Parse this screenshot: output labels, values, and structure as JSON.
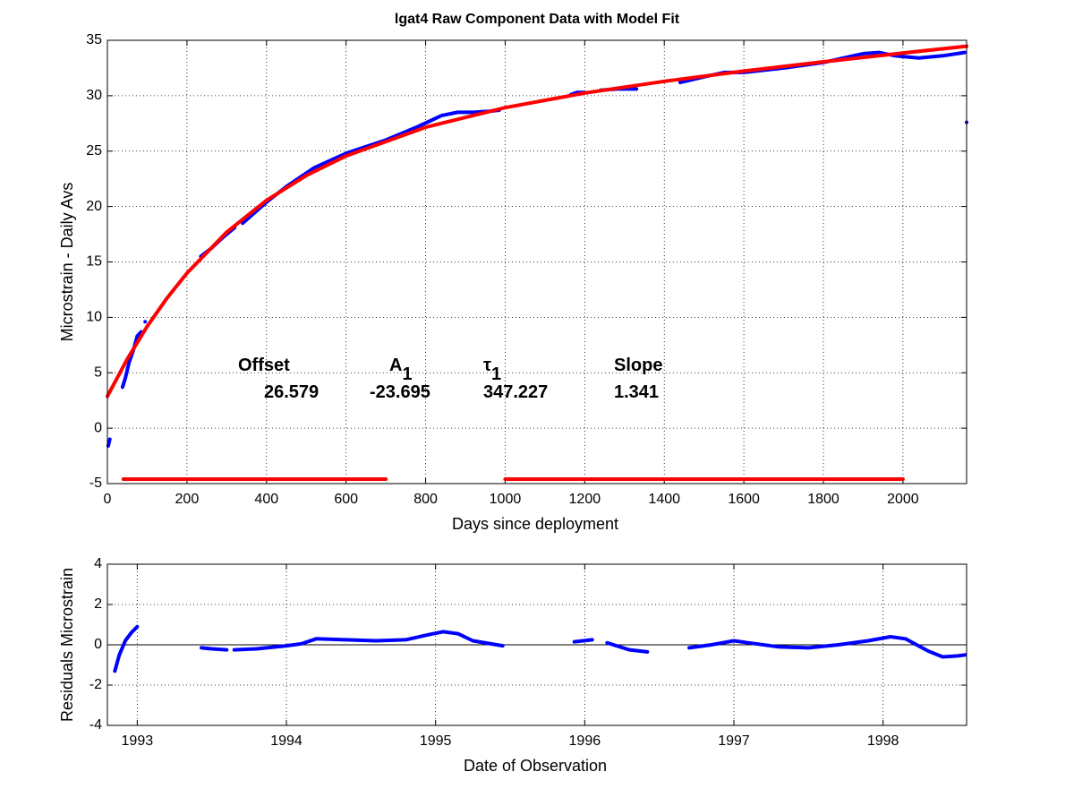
{
  "chart_data": [
    {
      "type": "line",
      "title": "lgat4  Raw Component Data with Model Fit",
      "xlabel": "Days since deployment",
      "ylabel": "Microstrain - Daily Avs",
      "xlim": [
        0,
        2160
      ],
      "ylim": [
        -5,
        35
      ],
      "xticks": [
        0,
        200,
        400,
        600,
        800,
        1000,
        1200,
        1400,
        1600,
        1800,
        2000
      ],
      "yticks": [
        -5,
        0,
        5,
        10,
        15,
        20,
        25,
        30,
        35
      ],
      "grid": true,
      "series": [
        {
          "color": "#0000ff",
          "x": [
            2,
            6,
            null,
            38,
            45,
            55,
            65,
            75,
            85,
            null,
            95,
            null,
            235,
            260,
            290,
            320,
            null,
            340,
            400,
            450,
            520,
            600,
            700,
            780,
            840,
            880,
            920,
            960,
            985,
            null,
            1165,
            1180,
            1200,
            null,
            1240,
            1280,
            1330,
            null,
            1440,
            1500,
            1550,
            1600,
            1700,
            1800,
            1850,
            1900,
            1940,
            1980,
            2040,
            2100,
            2155,
            null,
            2160
          ],
          "values": [
            -1.6,
            -1.0,
            null,
            3.7,
            4.5,
            6.0,
            7.0,
            8.3,
            8.7,
            null,
            9.6,
            null,
            15.5,
            16.2,
            17.2,
            18.1,
            null,
            18.5,
            20.4,
            21.8,
            23.5,
            24.8,
            26.0,
            27.2,
            28.2,
            28.5,
            28.5,
            28.6,
            28.7,
            null,
            30.1,
            30.3,
            30.3,
            null,
            30.5,
            30.6,
            30.6,
            null,
            31.2,
            31.7,
            32.1,
            32.1,
            32.5,
            33.0,
            33.4,
            33.8,
            33.9,
            33.6,
            33.4,
            33.6,
            33.9,
            null,
            27.6
          ]
        },
        {
          "color": "#ff0000",
          "x": [
            0,
            50,
            100,
            150,
            200,
            300,
            400,
            500,
            600,
            800,
            1000,
            1200,
            1400,
            1600,
            1800,
            2000,
            2160
          ],
          "values": [
            2.88,
            6.24,
            9.18,
            11.75,
            13.99,
            17.69,
            20.56,
            22.8,
            24.57,
            27.15,
            28.92,
            30.24,
            31.3,
            32.22,
            33.06,
            33.85,
            34.47
          ]
        },
        {
          "color": "#ff0000",
          "x": [
            40,
            700,
            null,
            1000,
            2000
          ],
          "values": [
            -4.6,
            -4.6,
            null,
            -4.6,
            -4.6
          ]
        }
      ],
      "annotations": [
        {
          "label": "Offset",
          "value": 26.579
        },
        {
          "label": "A",
          "subscript": "1",
          "value": -23.695
        },
        {
          "label": "τ",
          "subscript": "1",
          "value": 347.227
        },
        {
          "label": "Slope",
          "value": 1.341
        }
      ]
    },
    {
      "type": "line",
      "xlabel": "Date of Observation",
      "ylabel": "Residuals Microstrain",
      "xlim": [
        1992.8,
        1998.56
      ],
      "ylim": [
        -4,
        4
      ],
      "xticks": [
        1993,
        1994,
        1995,
        1996,
        1997,
        1998
      ],
      "yticks": [
        -4,
        -2,
        0,
        2,
        4
      ],
      "grid": true,
      "reference_line": 0,
      "series": [
        {
          "color": "#0000ff",
          "x": [
            1992.85,
            1992.88,
            1992.92,
            1992.96,
            1993.0,
            null,
            1993.43,
            1993.5,
            1993.6,
            null,
            1993.65,
            1993.8,
            1994.0,
            1994.1,
            1994.2,
            1994.4,
            1994.6,
            1994.8,
            1994.95,
            1995.05,
            1995.15,
            1995.25,
            1995.45,
            null,
            1995.93,
            1996.05,
            null,
            1996.15,
            1996.3,
            1996.42,
            null,
            1996.7,
            1996.85,
            1997.0,
            1997.1,
            1997.3,
            1997.5,
            1997.7,
            1997.9,
            1998.05,
            1998.15,
            1998.3,
            1998.4,
            1998.5,
            1998.55
          ],
          "values": [
            -1.3,
            -0.5,
            0.2,
            0.6,
            0.9,
            null,
            -0.15,
            -0.2,
            -0.25,
            null,
            -0.25,
            -0.2,
            -0.05,
            0.05,
            0.3,
            0.25,
            0.2,
            0.25,
            0.5,
            0.65,
            0.55,
            0.2,
            -0.05,
            null,
            0.15,
            0.25,
            null,
            0.1,
            -0.25,
            -0.35,
            null,
            -0.15,
            0.0,
            0.2,
            0.1,
            -0.1,
            -0.15,
            0.0,
            0.2,
            0.4,
            0.3,
            -0.3,
            -0.6,
            -0.55,
            -0.5
          ]
        }
      ]
    }
  ]
}
